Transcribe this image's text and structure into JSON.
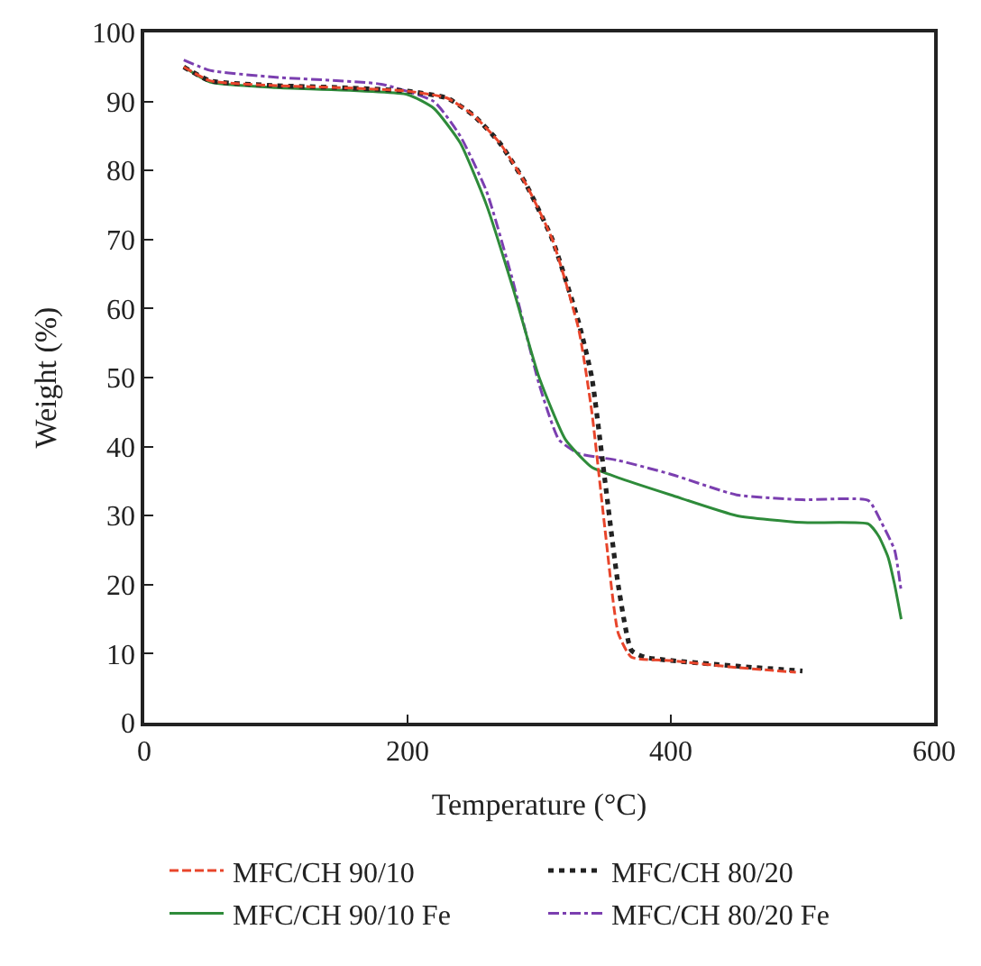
{
  "chart_data": {
    "type": "line",
    "xlabel": "Temperature (°C)",
    "ylabel": "Weight (%)",
    "xlim": [
      0,
      600
    ],
    "xticks": [
      0,
      200,
      400,
      600
    ],
    "ylim": [
      0,
      100
    ],
    "yticks": [
      0,
      10,
      20,
      30,
      40,
      50,
      60,
      70,
      80,
      90,
      100
    ],
    "grid": false,
    "legend": "bottom",
    "marker": "none",
    "series": [
      {
        "name": "MFC/CH 90/10",
        "color": "#e8452b",
        "line_style": "dashed",
        "x": [
          30,
          50,
          100,
          150,
          200,
          230,
          250,
          270,
          290,
          310,
          330,
          340,
          350,
          360,
          370,
          400,
          450,
          495
        ],
        "values": [
          95,
          93,
          92.3,
          92,
          91.5,
          90.5,
          88,
          84,
          78,
          70,
          57,
          45,
          28,
          13,
          9.5,
          9,
          8,
          7.3
        ]
      },
      {
        "name": "MFC/CH 80/20",
        "color": "#222222",
        "line_style": "dotted",
        "x": [
          30,
          50,
          100,
          150,
          200,
          230,
          250,
          270,
          290,
          310,
          330,
          340,
          350,
          360,
          370,
          380,
          450,
          500
        ],
        "values": [
          95,
          93,
          92.3,
          92,
          91.5,
          90.5,
          88,
          84,
          78,
          70,
          58,
          50,
          35,
          20,
          10.5,
          9.5,
          8.2,
          7.5
        ]
      },
      {
        "name": "MFC/CH 90/10 Fe",
        "color": "#2e8b3a",
        "line_style": "solid",
        "x": [
          30,
          50,
          100,
          200,
          220,
          240,
          260,
          280,
          300,
          320,
          340,
          360,
          400,
          450,
          500,
          550,
          558,
          565,
          570,
          575
        ],
        "values": [
          95,
          92.8,
          92,
          91,
          89,
          84,
          75,
          63,
          50,
          41,
          37,
          35.5,
          33,
          30,
          29,
          28.8,
          27,
          24,
          20,
          15
        ]
      },
      {
        "name": "MFC/CH 80/20 Fe",
        "color": "#7b3fb0",
        "line_style": "dashdot",
        "x": [
          30,
          50,
          100,
          180,
          220,
          240,
          260,
          280,
          300,
          315,
          330,
          360,
          400,
          450,
          500,
          550,
          560,
          570,
          575
        ],
        "values": [
          96,
          94.5,
          93.5,
          92.5,
          90,
          85,
          77,
          64,
          49,
          41,
          39,
          38,
          36,
          33,
          32.3,
          32.2,
          29,
          25,
          19
        ]
      }
    ]
  }
}
